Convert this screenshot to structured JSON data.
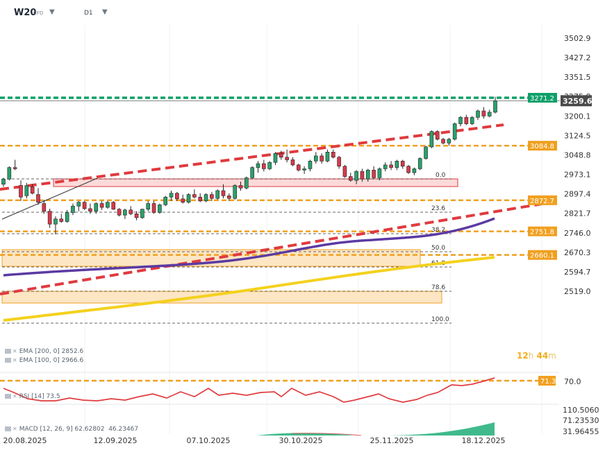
{
  "header": {
    "symbol": "W20",
    "instrument_type": "CFD",
    "timeframe": "D1"
  },
  "legend": {
    "ema200": "EMA [200, 0] 2852.6",
    "ema100": "EMA [100, 0] 2966.6",
    "rsi": "RSI [14] 73.5",
    "macd_name": "MACD [12, 26, 9] 62.62802",
    "macd_value": "46.23467"
  },
  "timer": {
    "hours": "12",
    "hours_unit": "h",
    "minutes": "44",
    "minutes_unit": "m"
  },
  "price_axis": {
    "ticks": [
      "3502.9",
      "3427.2",
      "3351.5",
      "3275.8",
      "3200.1",
      "3124.5",
      "3048.8",
      "2973.1",
      "2897.4",
      "2821.7",
      "2746.0",
      "2670.3",
      "2594.7",
      "2519.0"
    ]
  },
  "rsi_axis": {
    "ticks": [
      "70.0"
    ]
  },
  "macd_axis": {
    "ticks": [
      "110.5060",
      "71.23530",
      "31.96455"
    ]
  },
  "time_axis": {
    "labels": [
      "20.08.2025",
      "12.09.2025",
      "07.10.2025",
      "30.10.2025",
      "25.11.2025",
      "18.12.2025"
    ]
  },
  "tags": {
    "resistance": "3271.2",
    "last_price": "3259.6",
    "level_3084": "3084.8",
    "level_2872": "2872.7",
    "level_2751": "2751.8",
    "level_2660": "2660.1",
    "rsi_level": "71.3"
  },
  "fib_labels": [
    "0.0",
    "23.6",
    "38.2",
    "50.0",
    "61.8",
    "78.6",
    "100.0"
  ],
  "colors": {
    "up_candle": "#2aa16c",
    "down_candle": "#d8394a",
    "ema200": "#f4d11e",
    "ema100": "#5c3aa3",
    "trend_channel": "#e03a3e",
    "orange_levels": "#f0a020",
    "green_resistance": "#0fa06a",
    "zone_fill": "#fde6c4",
    "zone_border": "#f0a020",
    "red_zone_fill": "#fcdada",
    "rsi_line": "#e03a3e",
    "macd_hist": "#1fae78"
  },
  "chart_data": {
    "type": "candlestick",
    "title": "W20 CFD D1",
    "price_range": [
      2519.0,
      3502.9
    ],
    "x_axis_dates": [
      "20.08.2025",
      "12.09.2025",
      "07.10.2025",
      "30.10.2025",
      "25.11.2025",
      "18.12.2025"
    ],
    "last_price": 3259.6,
    "horizontal_levels": [
      3271.2,
      3084.8,
      2872.7,
      2751.8,
      2660.1
    ],
    "fibonacci_retracement": [
      {
        "level": "0.0"
      },
      {
        "level": "23.6"
      },
      {
        "level": "38.2"
      },
      {
        "level": "50.0"
      },
      {
        "level": "61.8"
      },
      {
        "level": "78.6"
      },
      {
        "level": "100.0"
      }
    ],
    "indicators": {
      "ema_200": 2852.6,
      "ema_100": 2966.6,
      "rsi_14": 73.5,
      "rsi_level": 71.3,
      "macd": [
        62.62802,
        46.23467
      ]
    },
    "candles": [
      [
        2935,
        2960,
        2925,
        2955
      ],
      [
        2955,
        3005,
        2950,
        3000
      ],
      [
        3000,
        3030,
        2990,
        2995
      ],
      [
        2930,
        2950,
        2870,
        2885
      ],
      [
        2890,
        2940,
        2880,
        2930
      ],
      [
        2925,
        2935,
        2895,
        2900
      ],
      [
        2895,
        2920,
        2855,
        2865
      ],
      [
        2860,
        2875,
        2820,
        2830
      ],
      [
        2830,
        2840,
        2765,
        2780
      ],
      [
        2780,
        2810,
        2740,
        2800
      ],
      [
        2800,
        2820,
        2785,
        2790
      ],
      [
        2790,
        2835,
        2785,
        2825
      ],
      [
        2825,
        2860,
        2815,
        2850
      ],
      [
        2850,
        2870,
        2830,
        2865
      ],
      [
        2865,
        2870,
        2835,
        2840
      ],
      [
        2840,
        2860,
        2820,
        2830
      ],
      [
        2830,
        2865,
        2820,
        2860
      ],
      [
        2860,
        2870,
        2835,
        2845
      ],
      [
        2845,
        2870,
        2840,
        2865
      ],
      [
        2865,
        2870,
        2835,
        2838
      ],
      [
        2838,
        2842,
        2810,
        2815
      ],
      [
        2815,
        2840,
        2800,
        2835
      ],
      [
        2835,
        2850,
        2815,
        2820
      ],
      [
        2820,
        2830,
        2795,
        2805
      ],
      [
        2805,
        2840,
        2800,
        2838
      ],
      [
        2838,
        2870,
        2830,
        2860
      ],
      [
        2860,
        2870,
        2820,
        2825
      ],
      [
        2825,
        2860,
        2820,
        2855
      ],
      [
        2855,
        2890,
        2850,
        2885
      ],
      [
        2885,
        2910,
        2870,
        2900
      ],
      [
        2900,
        2905,
        2870,
        2878
      ],
      [
        2878,
        2895,
        2860,
        2865
      ],
      [
        2865,
        2900,
        2860,
        2895
      ],
      [
        2895,
        2915,
        2880,
        2885
      ],
      [
        2885,
        2900,
        2865,
        2870
      ],
      [
        2870,
        2900,
        2865,
        2895
      ],
      [
        2895,
        2905,
        2870,
        2880
      ],
      [
        2880,
        2915,
        2875,
        2910
      ],
      [
        2910,
        2935,
        2880,
        2890
      ],
      [
        2890,
        2900,
        2870,
        2880
      ],
      [
        2880,
        2935,
        2875,
        2930
      ],
      [
        2930,
        2945,
        2910,
        2920
      ],
      [
        2920,
        2965,
        2915,
        2960
      ],
      [
        2960,
        3005,
        2955,
        3000
      ],
      [
        3000,
        3025,
        2980,
        3015
      ],
      [
        3015,
        3030,
        2985,
        2995
      ],
      [
        2995,
        3025,
        2990,
        3020
      ],
      [
        3020,
        3060,
        3010,
        3055
      ],
      [
        3055,
        3065,
        3030,
        3040
      ],
      [
        3040,
        3070,
        3020,
        3030
      ],
      [
        3030,
        3040,
        3005,
        3010
      ],
      [
        3010,
        3015,
        2985,
        2990
      ],
      [
        2990,
        3005,
        2975,
        2995
      ],
      [
        2995,
        3030,
        2985,
        3025
      ],
      [
        3025,
        3060,
        3015,
        3045
      ],
      [
        3045,
        3055,
        3015,
        3025
      ],
      [
        3025,
        3070,
        3020,
        3060
      ],
      [
        3060,
        3070,
        3035,
        3040
      ],
      [
        3040,
        3045,
        2995,
        3005
      ],
      [
        3005,
        3010,
        2960,
        2965
      ],
      [
        2965,
        2980,
        2945,
        2950
      ],
      [
        2950,
        2990,
        2935,
        2985
      ],
      [
        2985,
        2995,
        2945,
        2955
      ],
      [
        2955,
        2995,
        2945,
        2990
      ],
      [
        2990,
        3005,
        2955,
        2960
      ],
      [
        2960,
        3000,
        2950,
        2995
      ],
      [
        2995,
        3020,
        2985,
        3010
      ],
      [
        3010,
        3025,
        2990,
        3000
      ],
      [
        3000,
        3030,
        2990,
        3025
      ],
      [
        3025,
        3030,
        2995,
        3005
      ],
      [
        3005,
        3010,
        2975,
        2980
      ],
      [
        2980,
        3000,
        2970,
        2995
      ],
      [
        2995,
        3040,
        2990,
        3035
      ],
      [
        3035,
        3085,
        3030,
        3080
      ],
      [
        3080,
        3145,
        3075,
        3140
      ],
      [
        3140,
        3145,
        3105,
        3110
      ],
      [
        3110,
        3115,
        3090,
        3095
      ],
      [
        3095,
        3115,
        3085,
        3110
      ],
      [
        3110,
        3175,
        3105,
        3170
      ],
      [
        3170,
        3200,
        3160,
        3195
      ],
      [
        3195,
        3205,
        3165,
        3170
      ],
      [
        3170,
        3200,
        3165,
        3195
      ],
      [
        3195,
        3225,
        3185,
        3220
      ],
      [
        3220,
        3235,
        3190,
        3200
      ],
      [
        3200,
        3225,
        3195,
        3215
      ],
      [
        3215,
        3275,
        3210,
        3259.6
      ]
    ]
  }
}
